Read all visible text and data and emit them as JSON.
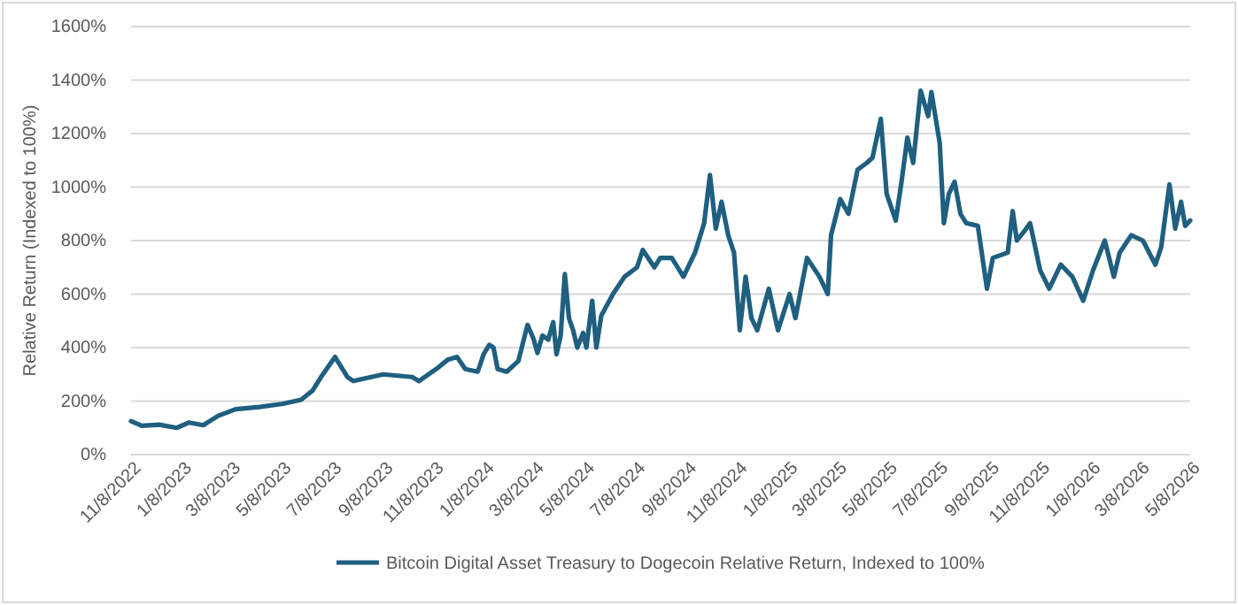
{
  "chart_data": {
    "type": "line",
    "ylabel": "Relative Return (Indexed to 100%)",
    "x": [
      "2022-11-08",
      "2022-11-21",
      "2022-12-12",
      "2023-01-02",
      "2023-01-17",
      "2023-02-03",
      "2023-02-21",
      "2023-03-14",
      "2023-04-12",
      "2023-05-10",
      "2023-06-01",
      "2023-06-15",
      "2023-06-25",
      "2023-07-12",
      "2023-07-27",
      "2023-08-03",
      "2023-09-08",
      "2023-10-13",
      "2023-10-21",
      "2023-11-11",
      "2023-11-25",
      "2023-12-06",
      "2023-12-16",
      "2023-12-31",
      "2024-01-07",
      "2024-01-14",
      "2024-01-19",
      "2024-01-24",
      "2024-02-04",
      "2024-02-18",
      "2024-02-29",
      "2024-03-07",
      "2024-03-12",
      "2024-03-18",
      "2024-03-25",
      "2024-03-31",
      "2024-04-04",
      "2024-04-09",
      "2024-04-14",
      "2024-04-19",
      "2024-04-24",
      "2024-04-29",
      "2024-05-06",
      "2024-05-10",
      "2024-05-17",
      "2024-05-22",
      "2024-05-28",
      "2024-06-11",
      "2024-06-25",
      "2024-07-10",
      "2024-07-17",
      "2024-07-31",
      "2024-08-07",
      "2024-08-21",
      "2024-09-04",
      "2024-09-18",
      "2024-09-29",
      "2024-10-06",
      "2024-10-13",
      "2024-10-20",
      "2024-10-28",
      "2024-11-04",
      "2024-11-11",
      "2024-11-18",
      "2024-11-25",
      "2024-12-02",
      "2024-12-16",
      "2024-12-27",
      "2025-01-10",
      "2025-01-17",
      "2025-01-31",
      "2025-02-15",
      "2025-02-25",
      "2025-03-01",
      "2025-03-12",
      "2025-03-22",
      "2025-04-02",
      "2025-04-13",
      "2025-04-20",
      "2025-04-30",
      "2025-05-07",
      "2025-05-18",
      "2025-05-25",
      "2025-06-01",
      "2025-06-08",
      "2025-06-17",
      "2025-06-26",
      "2025-06-30",
      "2025-07-10",
      "2025-07-15",
      "2025-07-21",
      "2025-07-28",
      "2025-08-04",
      "2025-08-11",
      "2025-08-25",
      "2025-09-05",
      "2025-09-12",
      "2025-09-30",
      "2025-10-06",
      "2025-10-11",
      "2025-10-20",
      "2025-10-27",
      "2025-11-08",
      "2025-11-19",
      "2025-12-03",
      "2025-12-17",
      "2025-12-30",
      "2026-01-11",
      "2026-01-25",
      "2026-02-05",
      "2026-02-12",
      "2026-02-26",
      "2026-03-12",
      "2026-03-27",
      "2026-04-03",
      "2026-04-13",
      "2026-04-20",
      "2026-04-27",
      "2026-05-02",
      "2026-05-08"
    ],
    "series": [
      {
        "name": "Bitcoin Digital Asset Treasury to Dogecoin Relative Return, Indexed to 100%",
        "color": "#1f5f80",
        "values": [
          125,
          108,
          112,
          100,
          120,
          110,
          145,
          170,
          178,
          190,
          205,
          240,
          290,
          365,
          290,
          275,
          300,
          290,
          275,
          320,
          355,
          365,
          320,
          310,
          375,
          410,
          400,
          320,
          310,
          350,
          485,
          435,
          380,
          445,
          430,
          495,
          375,
          445,
          675,
          510,
          465,
          400,
          455,
          400,
          575,
          400,
          520,
          600,
          665,
          700,
          765,
          700,
          735,
          735,
          665,
          755,
          865,
          1045,
          845,
          945,
          820,
          755,
          465,
          665,
          510,
          465,
          620,
          465,
          600,
          510,
          735,
          665,
          600,
          820,
          955,
          900,
          1065,
          1090,
          1110,
          1255,
          975,
          875,
          1020,
          1185,
          1090,
          1360,
          1265,
          1355,
          1165,
          865,
          975,
          1020,
          900,
          865,
          855,
          620,
          735,
          755,
          910,
          800,
          835,
          865,
          690,
          620,
          710,
          665,
          575,
          690,
          800,
          665,
          755,
          820,
          800,
          710,
          775,
          1010,
          845,
          945,
          855,
          875
        ]
      }
    ],
    "xlim": [
      "2022-11-08",
      "2026-05-08"
    ],
    "xticks": [
      {
        "value": "2022-11-08",
        "label": "11/8/2022"
      },
      {
        "value": "2023-01-08",
        "label": "1/8/2023"
      },
      {
        "value": "2023-03-08",
        "label": "3/8/2023"
      },
      {
        "value": "2023-05-08",
        "label": "5/8/2023"
      },
      {
        "value": "2023-07-08",
        "label": "7/8/2023"
      },
      {
        "value": "2023-09-08",
        "label": "9/8/2023"
      },
      {
        "value": "2023-11-08",
        "label": "11/8/2023"
      },
      {
        "value": "2024-01-08",
        "label": "1/8/2024"
      },
      {
        "value": "2024-03-08",
        "label": "3/8/2024"
      },
      {
        "value": "2024-05-08",
        "label": "5/8/2024"
      },
      {
        "value": "2024-07-08",
        "label": "7/8/2024"
      },
      {
        "value": "2024-09-08",
        "label": "9/8/2024"
      },
      {
        "value": "2024-11-08",
        "label": "11/8/2024"
      },
      {
        "value": "2025-01-08",
        "label": "1/8/2025"
      },
      {
        "value": "2025-03-08",
        "label": "3/8/2025"
      },
      {
        "value": "2025-05-08",
        "label": "5/8/2025"
      },
      {
        "value": "2025-07-08",
        "label": "7/8/2025"
      },
      {
        "value": "2025-09-08",
        "label": "9/8/2025"
      },
      {
        "value": "2025-11-08",
        "label": "11/8/2025"
      },
      {
        "value": "2026-01-08",
        "label": "1/8/2026"
      },
      {
        "value": "2026-03-08",
        "label": "3/8/2026"
      },
      {
        "value": "2026-05-08",
        "label": "5/8/2026"
      }
    ],
    "ylim": [
      0,
      1600
    ],
    "yticks": [
      {
        "value": 0,
        "label": "0%"
      },
      {
        "value": 200,
        "label": "200%"
      },
      {
        "value": 400,
        "label": "400%"
      },
      {
        "value": 600,
        "label": "600%"
      },
      {
        "value": 800,
        "label": "800%"
      },
      {
        "value": 1000,
        "label": "1000%"
      },
      {
        "value": 1200,
        "label": "1200%"
      },
      {
        "value": 1400,
        "label": "1400%"
      },
      {
        "value": 1600,
        "label": "1600%"
      }
    ],
    "grid": "y",
    "legend": "bottom",
    "line_style": "solid",
    "marker": "none"
  }
}
